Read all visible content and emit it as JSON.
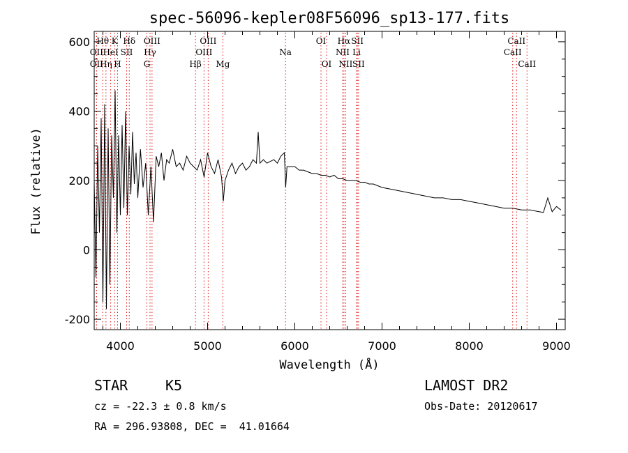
{
  "chart_data": {
    "type": "line",
    "title": "spec-56096-kepler08F56096_sp13-177.fits",
    "xlabel": "Wavelength (Å)",
    "ylabel": "Flux (relative)",
    "xlim": [
      3700,
      9100
    ],
    "ylim": [
      -230,
      630
    ],
    "xticks": [
      4000,
      5000,
      6000,
      7000,
      8000,
      9000
    ],
    "yticks": [
      -200,
      0,
      200,
      400,
      600
    ],
    "series": [
      {
        "x": [
          3700,
          3720,
          3740,
          3760,
          3780,
          3800,
          3820,
          3840,
          3860,
          3880,
          3900,
          3920,
          3940,
          3960,
          3980,
          4000,
          4020,
          4040,
          4060,
          4080,
          4100,
          4120,
          4140,
          4160,
          4180,
          4200,
          4230,
          4260,
          4290,
          4320,
          4350,
          4380,
          4410,
          4440,
          4470,
          4500,
          4530,
          4560,
          4600,
          4640,
          4680,
          4720,
          4760,
          4800,
          4840,
          4880,
          4920,
          4960,
          5000,
          5040,
          5080,
          5120,
          5160,
          5180,
          5200,
          5240,
          5280,
          5320,
          5360,
          5400,
          5440,
          5480,
          5520,
          5560,
          5580,
          5600,
          5640,
          5680,
          5720,
          5760,
          5800,
          5840,
          5880,
          5895,
          5910,
          5950,
          6000,
          6050,
          6100,
          6150,
          6200,
          6250,
          6300,
          6350,
          6400,
          6450,
          6500,
          6550,
          6600,
          6650,
          6700,
          6750,
          6800,
          6850,
          6900,
          6950,
          7000,
          7100,
          7200,
          7300,
          7400,
          7500,
          7600,
          7700,
          7800,
          7900,
          8000,
          8100,
          8200,
          8300,
          8400,
          8500,
          8600,
          8700,
          8800,
          8850,
          8900,
          8950,
          9000,
          9050
        ],
        "y": [
          200,
          -80,
          300,
          50,
          380,
          -150,
          420,
          -170,
          350,
          -100,
          330,
          150,
          460,
          50,
          330,
          100,
          360,
          120,
          400,
          100,
          300,
          160,
          340,
          190,
          280,
          150,
          290,
          180,
          250,
          100,
          240,
          80,
          270,
          240,
          280,
          200,
          260,
          250,
          290,
          240,
          250,
          230,
          270,
          250,
          240,
          230,
          260,
          210,
          280,
          240,
          220,
          260,
          210,
          140,
          200,
          230,
          250,
          220,
          240,
          250,
          230,
          240,
          260,
          250,
          340,
          250,
          260,
          250,
          255,
          260,
          250,
          270,
          280,
          180,
          240,
          240,
          240,
          230,
          230,
          225,
          220,
          220,
          215,
          215,
          210,
          215,
          205,
          205,
          200,
          200,
          200,
          195,
          195,
          190,
          190,
          185,
          180,
          175,
          170,
          165,
          160,
          155,
          150,
          150,
          145,
          145,
          140,
          135,
          130,
          125,
          120,
          120,
          115,
          115,
          110,
          108,
          150,
          110,
          125,
          115
        ]
      }
    ],
    "spectral_lines": [
      {
        "label": "Hθ",
        "x": 3798,
        "row": 0
      },
      {
        "label": "K",
        "x": 3934,
        "row": 0
      },
      {
        "label": "Hδ",
        "x": 4102,
        "row": 0
      },
      {
        "label": "OIII",
        "x": 4363,
        "row": 0
      },
      {
        "label": "OIII",
        "x": 5007,
        "row": 0
      },
      {
        "label": "OI",
        "x": 6300,
        "row": 0
      },
      {
        "label": "Hα",
        "x": 6563,
        "row": 0
      },
      {
        "label": "SII",
        "x": 6717,
        "row": 0
      },
      {
        "label": "CaII",
        "x": 8542,
        "row": 0
      },
      {
        "label": "OII",
        "x": 3727,
        "row": 1
      },
      {
        "label": "HeI",
        "x": 3889,
        "row": 1
      },
      {
        "label": "SII",
        "x": 4072,
        "row": 1
      },
      {
        "label": "Hγ",
        "x": 4340,
        "row": 1
      },
      {
        "label": "OIII",
        "x": 4959,
        "row": 1
      },
      {
        "label": "Na",
        "x": 5893,
        "row": 1
      },
      {
        "label": "NII",
        "x": 6548,
        "row": 1
      },
      {
        "label": "Li",
        "x": 6708,
        "row": 1
      },
      {
        "label": "CaII",
        "x": 8498,
        "row": 1
      },
      {
        "label": "OII",
        "x": 3727,
        "row": 2
      },
      {
        "label": "Hη",
        "x": 3835,
        "row": 2
      },
      {
        "label": "H",
        "x": 3968,
        "row": 2
      },
      {
        "label": "G",
        "x": 4304,
        "row": 2
      },
      {
        "label": "Hβ",
        "x": 4861,
        "row": 2
      },
      {
        "label": "Mg",
        "x": 5175,
        "row": 2
      },
      {
        "label": "OI",
        "x": 6364,
        "row": 2
      },
      {
        "label": "NII",
        "x": 6583,
        "row": 2
      },
      {
        "label": "SII",
        "x": 6731,
        "row": 2
      },
      {
        "label": "CaII",
        "x": 8662,
        "row": 2
      }
    ],
    "grid": false,
    "legend": "none"
  },
  "info": {
    "object_class": "STAR",
    "subclass": "K5",
    "survey": "LAMOST DR2",
    "redshift": "cz = -22.3 ± 0.8 km/s",
    "coords": "RA = 296.93808, DEC =  41.01664",
    "obs_date": "Obs-Date: 20120617"
  },
  "colors": {
    "line_marker": "#e01010",
    "spectrum": "#000000"
  }
}
